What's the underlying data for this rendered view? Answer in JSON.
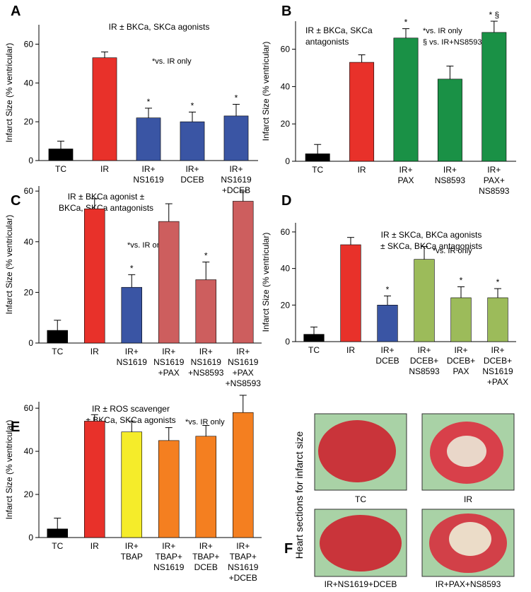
{
  "chart_data": [
    {
      "type": "bar",
      "panel": "A",
      "title": [
        "IR ± BKCa, SKCa agonists"
      ],
      "note": [
        "*vs. IR only"
      ],
      "y_label": "Infarct Size (% ventricular)",
      "categories": [
        [
          "TC"
        ],
        [
          "IR"
        ],
        [
          "IR+",
          "NS1619"
        ],
        [
          "IR+",
          "DCEB"
        ],
        [
          "IR+",
          "NS1619",
          "+DCEB"
        ]
      ],
      "values": [
        6,
        53,
        22,
        20,
        23
      ],
      "errors": [
        4,
        3,
        5,
        5,
        6
      ],
      "colors": [
        "#000000",
        "#e8312a",
        "#3a55a4",
        "#3a55a4",
        "#3a55a4"
      ],
      "annotations": [
        null,
        null,
        "*",
        "*",
        "*"
      ],
      "ylim": [
        0,
        70
      ],
      "yticks": [
        0,
        20,
        40,
        60
      ]
    },
    {
      "type": "bar",
      "panel": "B",
      "title": [
        "IR ± BKCa, SKCa",
        "antagonists"
      ],
      "note": [
        "*vs. IR only",
        "§ vs. IR+NS8593"
      ],
      "y_label": "Infarct Size (% ventricular)",
      "categories": [
        [
          "TC"
        ],
        [
          "IR"
        ],
        [
          "IR+",
          "PAX"
        ],
        [
          "IR+",
          "NS8593"
        ],
        [
          "IR+",
          "PAX+",
          "NS8593"
        ]
      ],
      "values": [
        4,
        53,
        66,
        44,
        69
      ],
      "errors": [
        5,
        4,
        5,
        7,
        6
      ],
      "colors": [
        "#000000",
        "#e8312a",
        "#1a9146",
        "#1a9146",
        "#1a9146"
      ],
      "annotations": [
        null,
        null,
        "*",
        null,
        "* §"
      ],
      "ylim": [
        0,
        75
      ],
      "yticks": [
        0,
        20,
        40,
        60
      ]
    },
    {
      "type": "bar",
      "panel": "C",
      "title": [
        "IR ± BKCa agonist ±",
        "BKCa, SKCa antagonists"
      ],
      "note": [
        "*vs. IR only"
      ],
      "y_label": "Infarct Size (% ventricular)",
      "categories": [
        [
          "TC"
        ],
        [
          "IR"
        ],
        [
          "IR+",
          "NS1619"
        ],
        [
          "IR+",
          "NS1619",
          "+PAX"
        ],
        [
          "IR+",
          "NS1619",
          "+NS8593"
        ],
        [
          "IR+",
          "NS1619",
          "+PAX",
          "+NS8593"
        ]
      ],
      "values": [
        5,
        53,
        22,
        48,
        25,
        56
      ],
      "errors": [
        4,
        4,
        5,
        7,
        7,
        4
      ],
      "colors": [
        "#000000",
        "#e8312a",
        "#3a55a4",
        "#cd5e5e",
        "#cd5e5e",
        "#cd5e5e"
      ],
      "annotations": [
        null,
        null,
        "*",
        null,
        "*",
        null
      ],
      "ylim": [
        0,
        62
      ],
      "yticks": [
        0,
        20,
        40,
        60
      ]
    },
    {
      "type": "bar",
      "panel": "D",
      "title": [
        "IR ± SKCa, BKCa agonists",
        "± SKCa, BKCa antagonists"
      ],
      "note": [
        "*vs. IR only"
      ],
      "y_label": "Infarct Size (% ventricular)",
      "categories": [
        [
          "TC"
        ],
        [
          "IR"
        ],
        [
          "IR+",
          "DCEB"
        ],
        [
          "IR+",
          "DCEB+",
          "NS8593"
        ],
        [
          "IR+",
          "DCEB+",
          "PAX"
        ],
        [
          "IR+",
          "DCEB+",
          "NS1619",
          "+PAX"
        ]
      ],
      "values": [
        4,
        53,
        20,
        45,
        24,
        24
      ],
      "errors": [
        4,
        4,
        5,
        7,
        6,
        5
      ],
      "colors": [
        "#000000",
        "#e8312a",
        "#3a55a4",
        "#9cbb5a",
        "#9cbb5a",
        "#9cbb5a"
      ],
      "annotations": [
        null,
        null,
        "*",
        null,
        "*",
        "*"
      ],
      "ylim": [
        0,
        65
      ],
      "yticks": [
        0,
        20,
        40,
        60
      ]
    },
    {
      "type": "bar",
      "panel": "E",
      "title": [
        "IR ± ROS scavenger",
        "± BKCa, SKCa agonists"
      ],
      "note": [
        "*vs. IR only"
      ],
      "y_label": "Infarct Size (% ventricular)",
      "categories": [
        [
          "TC"
        ],
        [
          "IR"
        ],
        [
          "IR+",
          "TBAP"
        ],
        [
          "IR+",
          "TBAP+",
          "NS1619"
        ],
        [
          "IR+",
          "TBAP+",
          "DCEB"
        ],
        [
          "IR+",
          "TBAP+",
          "NS1619",
          "+DCEB"
        ]
      ],
      "values": [
        4,
        54,
        49,
        45,
        47,
        58
      ],
      "errors": [
        5,
        3,
        5,
        6,
        5,
        8
      ],
      "colors": [
        "#000000",
        "#e8312a",
        "#f5ec2a",
        "#f47f20",
        "#f47f20",
        "#f47f20"
      ],
      "annotations": [
        null,
        null,
        null,
        null,
        null,
        null
      ],
      "ylim": [
        0,
        63
      ],
      "yticks": [
        0,
        20,
        40,
        60
      ]
    }
  ],
  "images": {
    "panel": "F",
    "y_label": "Heart sections for infarct size",
    "captions": [
      "TC",
      "IR",
      "IR+NS1619+DCEB",
      "IR+PAX+NS8593"
    ]
  }
}
